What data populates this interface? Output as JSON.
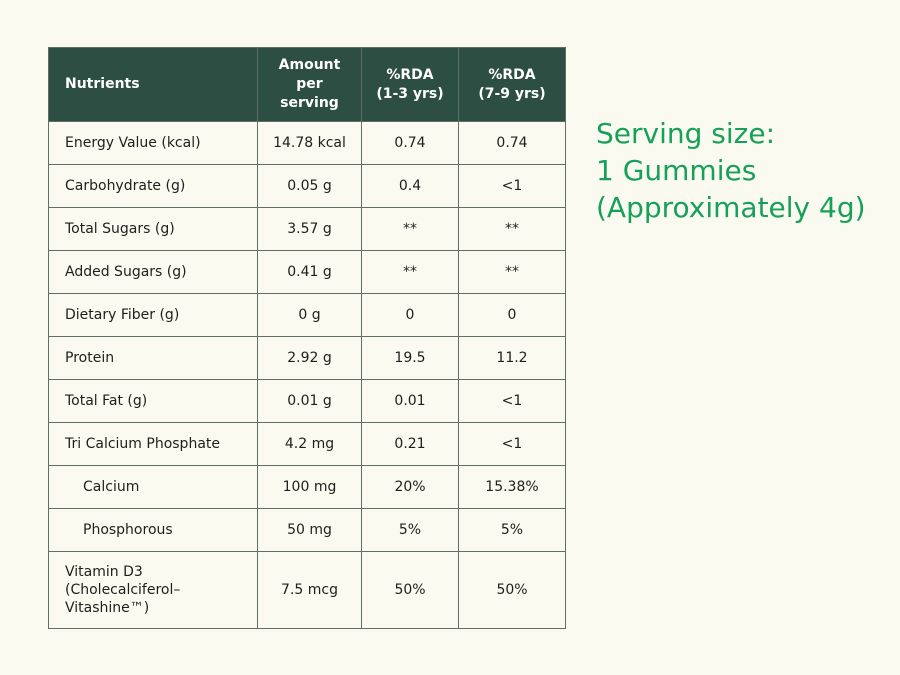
{
  "table": {
    "headers": {
      "nutrients": "Nutrients",
      "amount": [
        "Amount",
        "per",
        "serving"
      ],
      "rda_1_3": [
        "%RDA",
        "(1-3 yrs)"
      ],
      "rda_7_9": [
        "%RDA",
        "(7-9 yrs)"
      ]
    },
    "rows": [
      {
        "name": "Energy Value (kcal)",
        "amount": "14.78 kcal",
        "rda_1_3": "0.74",
        "rda_7_9": "0.74"
      },
      {
        "name": "Carbohydrate (g)",
        "amount": "0.05 g",
        "rda_1_3": "0.4",
        "rda_7_9": "<1"
      },
      {
        "name": "Total Sugars (g)",
        "amount": "3.57 g",
        "rda_1_3": "**",
        "rda_7_9": "**"
      },
      {
        "name": "Added Sugars (g)",
        "amount": "0.41 g",
        "rda_1_3": "**",
        "rda_7_9": "**"
      },
      {
        "name": "Dietary Fiber (g)",
        "amount": "0 g",
        "rda_1_3": "0",
        "rda_7_9": "0"
      },
      {
        "name": "Protein",
        "amount": "2.92 g",
        "rda_1_3": "19.5",
        "rda_7_9": "11.2"
      },
      {
        "name": "Total Fat (g)",
        "amount": "0.01 g",
        "rda_1_3": "0.01",
        "rda_7_9": "<1"
      },
      {
        "name": "Tri Calcium Phosphate",
        "amount": "4.2 mg",
        "rda_1_3": "0.21",
        "rda_7_9": "<1"
      },
      {
        "name": "Calcium",
        "amount": "100 mg",
        "rda_1_3": "20%",
        "rda_7_9": "15.38%"
      },
      {
        "name": "Phosphorous",
        "amount": "50 mg",
        "rda_1_3": "5%",
        "rda_7_9": "5%"
      }
    ],
    "vitamin_row": {
      "name_lines": [
        "Vitamin D3",
        "(Cholecalciferol–",
        "Vitashine™)"
      ],
      "amount": "7.5 mcg",
      "rda_1_3": "50%",
      "rda_7_9": "50%"
    }
  },
  "serving": {
    "lines": [
      "Serving size:",
      "1 Gummies",
      "(Approximately 4g)"
    ]
  },
  "colors": {
    "header_bg": "#2d4f43",
    "accent_green": "#17a05a",
    "page_bg": "#fbfaf0"
  }
}
